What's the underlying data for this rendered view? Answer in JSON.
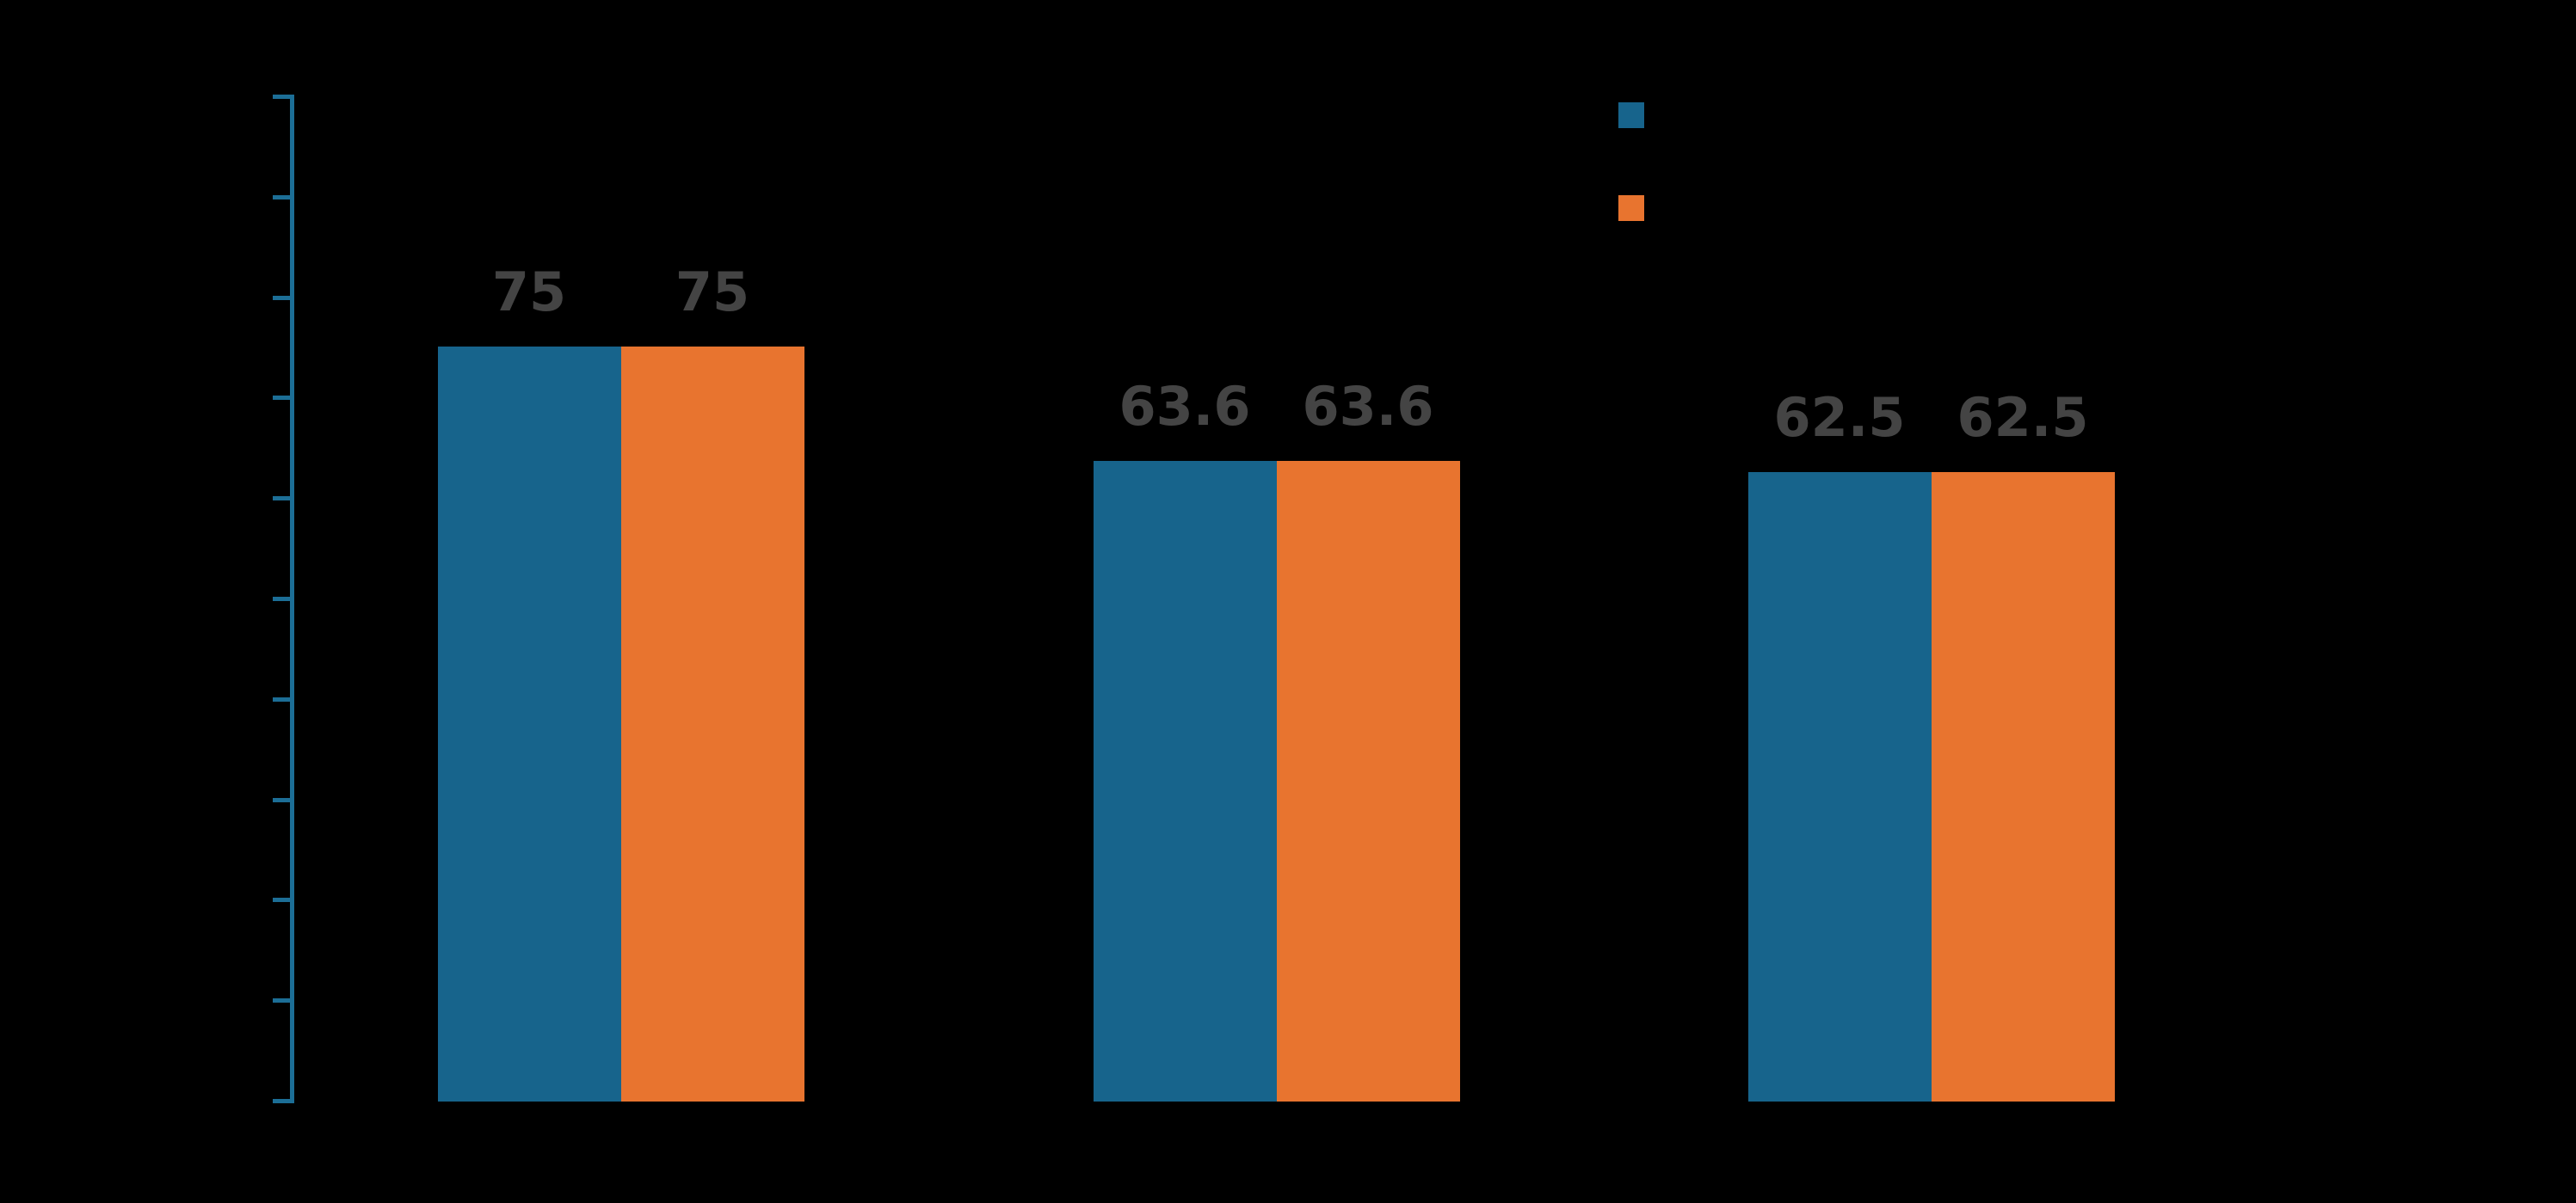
{
  "background_color": "#000000",
  "chart_data": {
    "type": "bar",
    "title": "",
    "categories": [
      "",
      "",
      ""
    ],
    "series": [
      {
        "name": "",
        "color": "#17648C",
        "values": [
          75,
          63.6,
          62.5
        ]
      },
      {
        "name": "",
        "color": "#E8742F",
        "values": [
          75,
          63.6,
          62.5
        ]
      }
    ],
    "value_labels": [
      [
        "75",
        "75"
      ],
      [
        "63.6",
        "63.6"
      ],
      [
        "62.5",
        "62.5"
      ]
    ],
    "xlabel": "",
    "ylabel": "",
    "ylim": [
      0,
      100
    ],
    "y_tick_step": 10,
    "y_tick_count": 11,
    "y_tick_labels_visible": false,
    "x_tick_labels_visible": false,
    "grid": false,
    "axis_color": "#1C6E96",
    "value_label_color": "#444444",
    "legend": {
      "position": "upper-right",
      "entries": [
        {
          "label": "",
          "color": "#17648C"
        },
        {
          "label": "",
          "color": "#E8742F"
        }
      ]
    }
  }
}
